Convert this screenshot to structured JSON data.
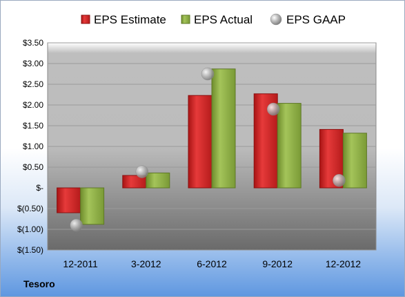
{
  "company": "Tesoro",
  "chart_data": {
    "type": "bar",
    "categories": [
      "12-2011",
      "3-2012",
      "6-2012",
      "9-2012",
      "12-2012"
    ],
    "series": [
      {
        "name": "EPS Estimate",
        "type": "bar",
        "color": "#d42a2a",
        "values": [
          -0.6,
          0.3,
          2.23,
          2.27,
          1.41
        ]
      },
      {
        "name": "EPS Actual",
        "type": "bar",
        "color": "#8fb04a",
        "values": [
          -0.88,
          0.36,
          2.87,
          2.04,
          1.32
        ]
      },
      {
        "name": "EPS GAAP",
        "type": "scatter",
        "color": "#a8a8a8",
        "values": [
          -0.9,
          0.39,
          2.75,
          1.9,
          0.18
        ]
      }
    ],
    "ylim": [
      -1.5,
      3.5
    ],
    "yticks": [
      -1.5,
      -1.0,
      -0.5,
      0,
      0.5,
      1.0,
      1.5,
      2.0,
      2.5,
      3.0,
      3.5
    ],
    "ytick_labels": [
      "$(1.50)",
      "$(1.00)",
      "$(0.50)",
      "$-",
      "$0.50",
      "$1.00",
      "$1.50",
      "$2.00",
      "$2.50",
      "$3.00",
      "$3.50"
    ],
    "grid": true,
    "legend_position": "top"
  }
}
